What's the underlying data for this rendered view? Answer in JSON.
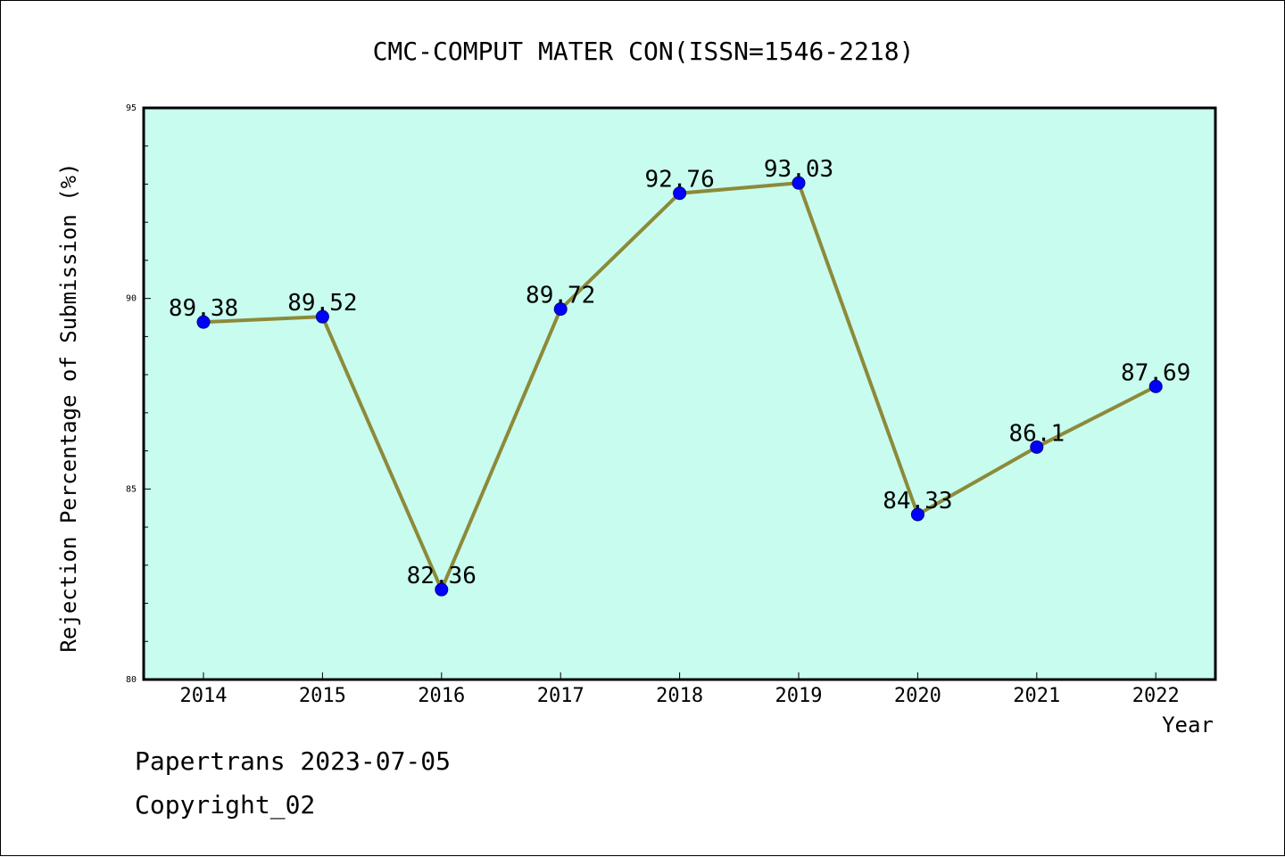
{
  "chart_data": {
    "type": "line",
    "title": "CMC-COMPUT MATER CON(ISSN=1546-2218)",
    "xlabel": "Year",
    "ylabel": "Rejection Percentage of Submission (%)",
    "categories": [
      "2014",
      "2015",
      "2016",
      "2017",
      "2018",
      "2019",
      "2020",
      "2021",
      "2022"
    ],
    "values": [
      89.38,
      89.52,
      82.36,
      89.72,
      92.76,
      93.03,
      84.33,
      86.1,
      87.69
    ],
    "data_labels": [
      "89.38",
      "89.52",
      "82.36",
      "89.72",
      "92.76",
      "93.03",
      "84.33",
      "86.1",
      "87.69"
    ],
    "ylim": [
      80,
      95
    ],
    "y_major_ticks": [
      80,
      85,
      90,
      95
    ],
    "y_minor_step": 1,
    "grid": false,
    "colors": {
      "plot_background": "#c8fcee",
      "line": "#8c8a3a",
      "marker": "#0000ff",
      "marker_edge": "#00008b"
    }
  },
  "footer": {
    "source": "Papertrans 2023-07-05",
    "copyright": "Copyright_02"
  }
}
